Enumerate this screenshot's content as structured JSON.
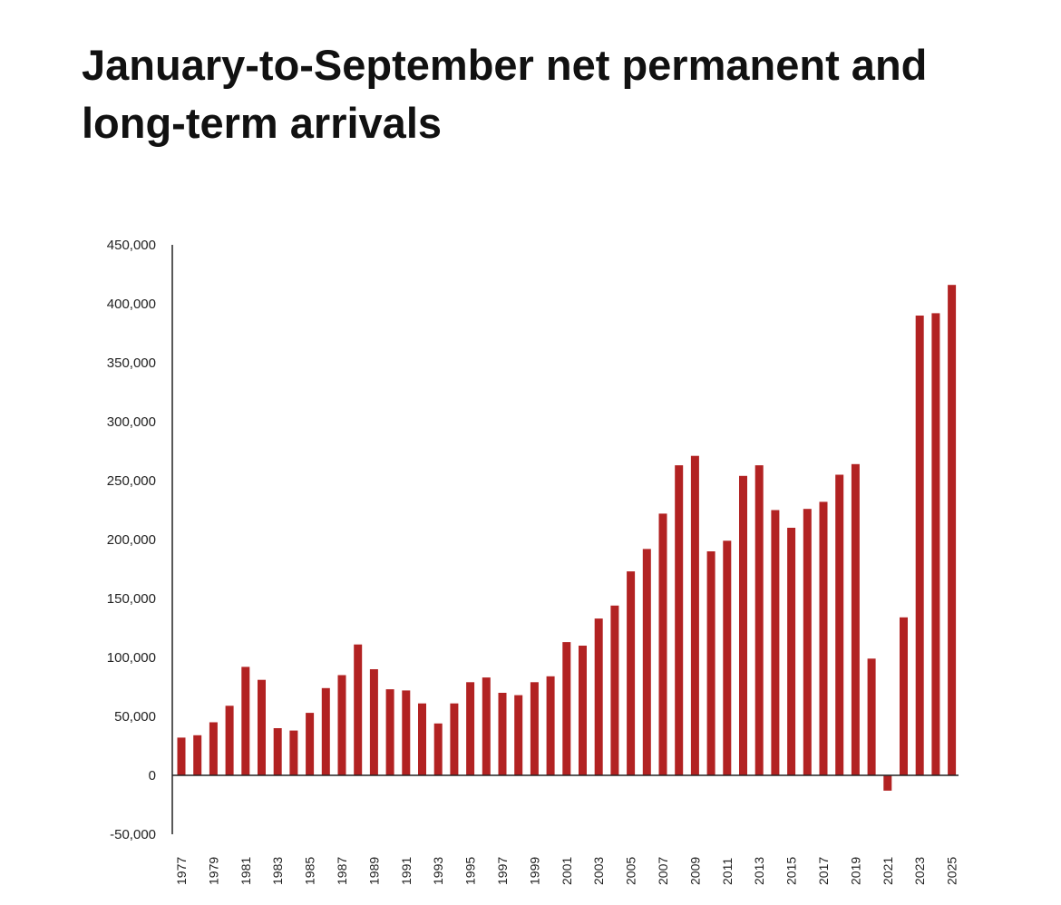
{
  "title": "January-to-September net permanent and long-term arrivals",
  "colors": {
    "bar": "#b22222",
    "axis": "#222222",
    "text": "#111111"
  },
  "chart_data": {
    "type": "bar",
    "title": "January-to-September net permanent and long-term arrivals",
    "xlabel": "",
    "ylabel": "",
    "ylim": [
      -50000,
      450000
    ],
    "yticks": [
      450000,
      400000,
      350000,
      300000,
      250000,
      200000,
      150000,
      100000,
      50000,
      0,
      -50000
    ],
    "ytick_labels": [
      "450,000",
      "400,000",
      "350,000",
      "300,000",
      "250,000",
      "200,000",
      "150,000",
      "100,000",
      "50,000",
      "0",
      "-50,000"
    ],
    "grid": false,
    "categories": [
      "1977",
      "1978",
      "1979",
      "1980",
      "1981",
      "1982",
      "1983",
      "1984",
      "1985",
      "1986",
      "1987",
      "1988",
      "1989",
      "1990",
      "1991",
      "1992",
      "1993",
      "1994",
      "1995",
      "1996",
      "1997",
      "1998",
      "1999",
      "2000",
      "2001",
      "2002",
      "2003",
      "2004",
      "2005",
      "2006",
      "2007",
      "2008",
      "2009",
      "2010",
      "2011",
      "2012",
      "2013",
      "2014",
      "2015",
      "2016",
      "2017",
      "2018",
      "2019",
      "2020",
      "2021",
      "2022",
      "2023",
      "2024",
      "2025"
    ],
    "xtick_labels": [
      "1977",
      "1979",
      "1981",
      "1983",
      "1985",
      "1987",
      "1989",
      "1991",
      "1993",
      "1995",
      "1997",
      "1999",
      "2001",
      "2003",
      "2005",
      "2007",
      "2009",
      "2011",
      "2013",
      "2015",
      "2017",
      "2019",
      "2021",
      "2023",
      "2025"
    ],
    "values": [
      32000,
      34000,
      45000,
      59000,
      92000,
      81000,
      40000,
      38000,
      53000,
      74000,
      85000,
      111000,
      90000,
      73000,
      72000,
      61000,
      44000,
      61000,
      79000,
      83000,
      70000,
      68000,
      79000,
      84000,
      113000,
      110000,
      133000,
      144000,
      173000,
      192000,
      222000,
      263000,
      271000,
      190000,
      199000,
      254000,
      263000,
      225000,
      210000,
      226000,
      232000,
      255000,
      264000,
      99000,
      -13000,
      134000,
      390000,
      392000,
      416000
    ]
  }
}
